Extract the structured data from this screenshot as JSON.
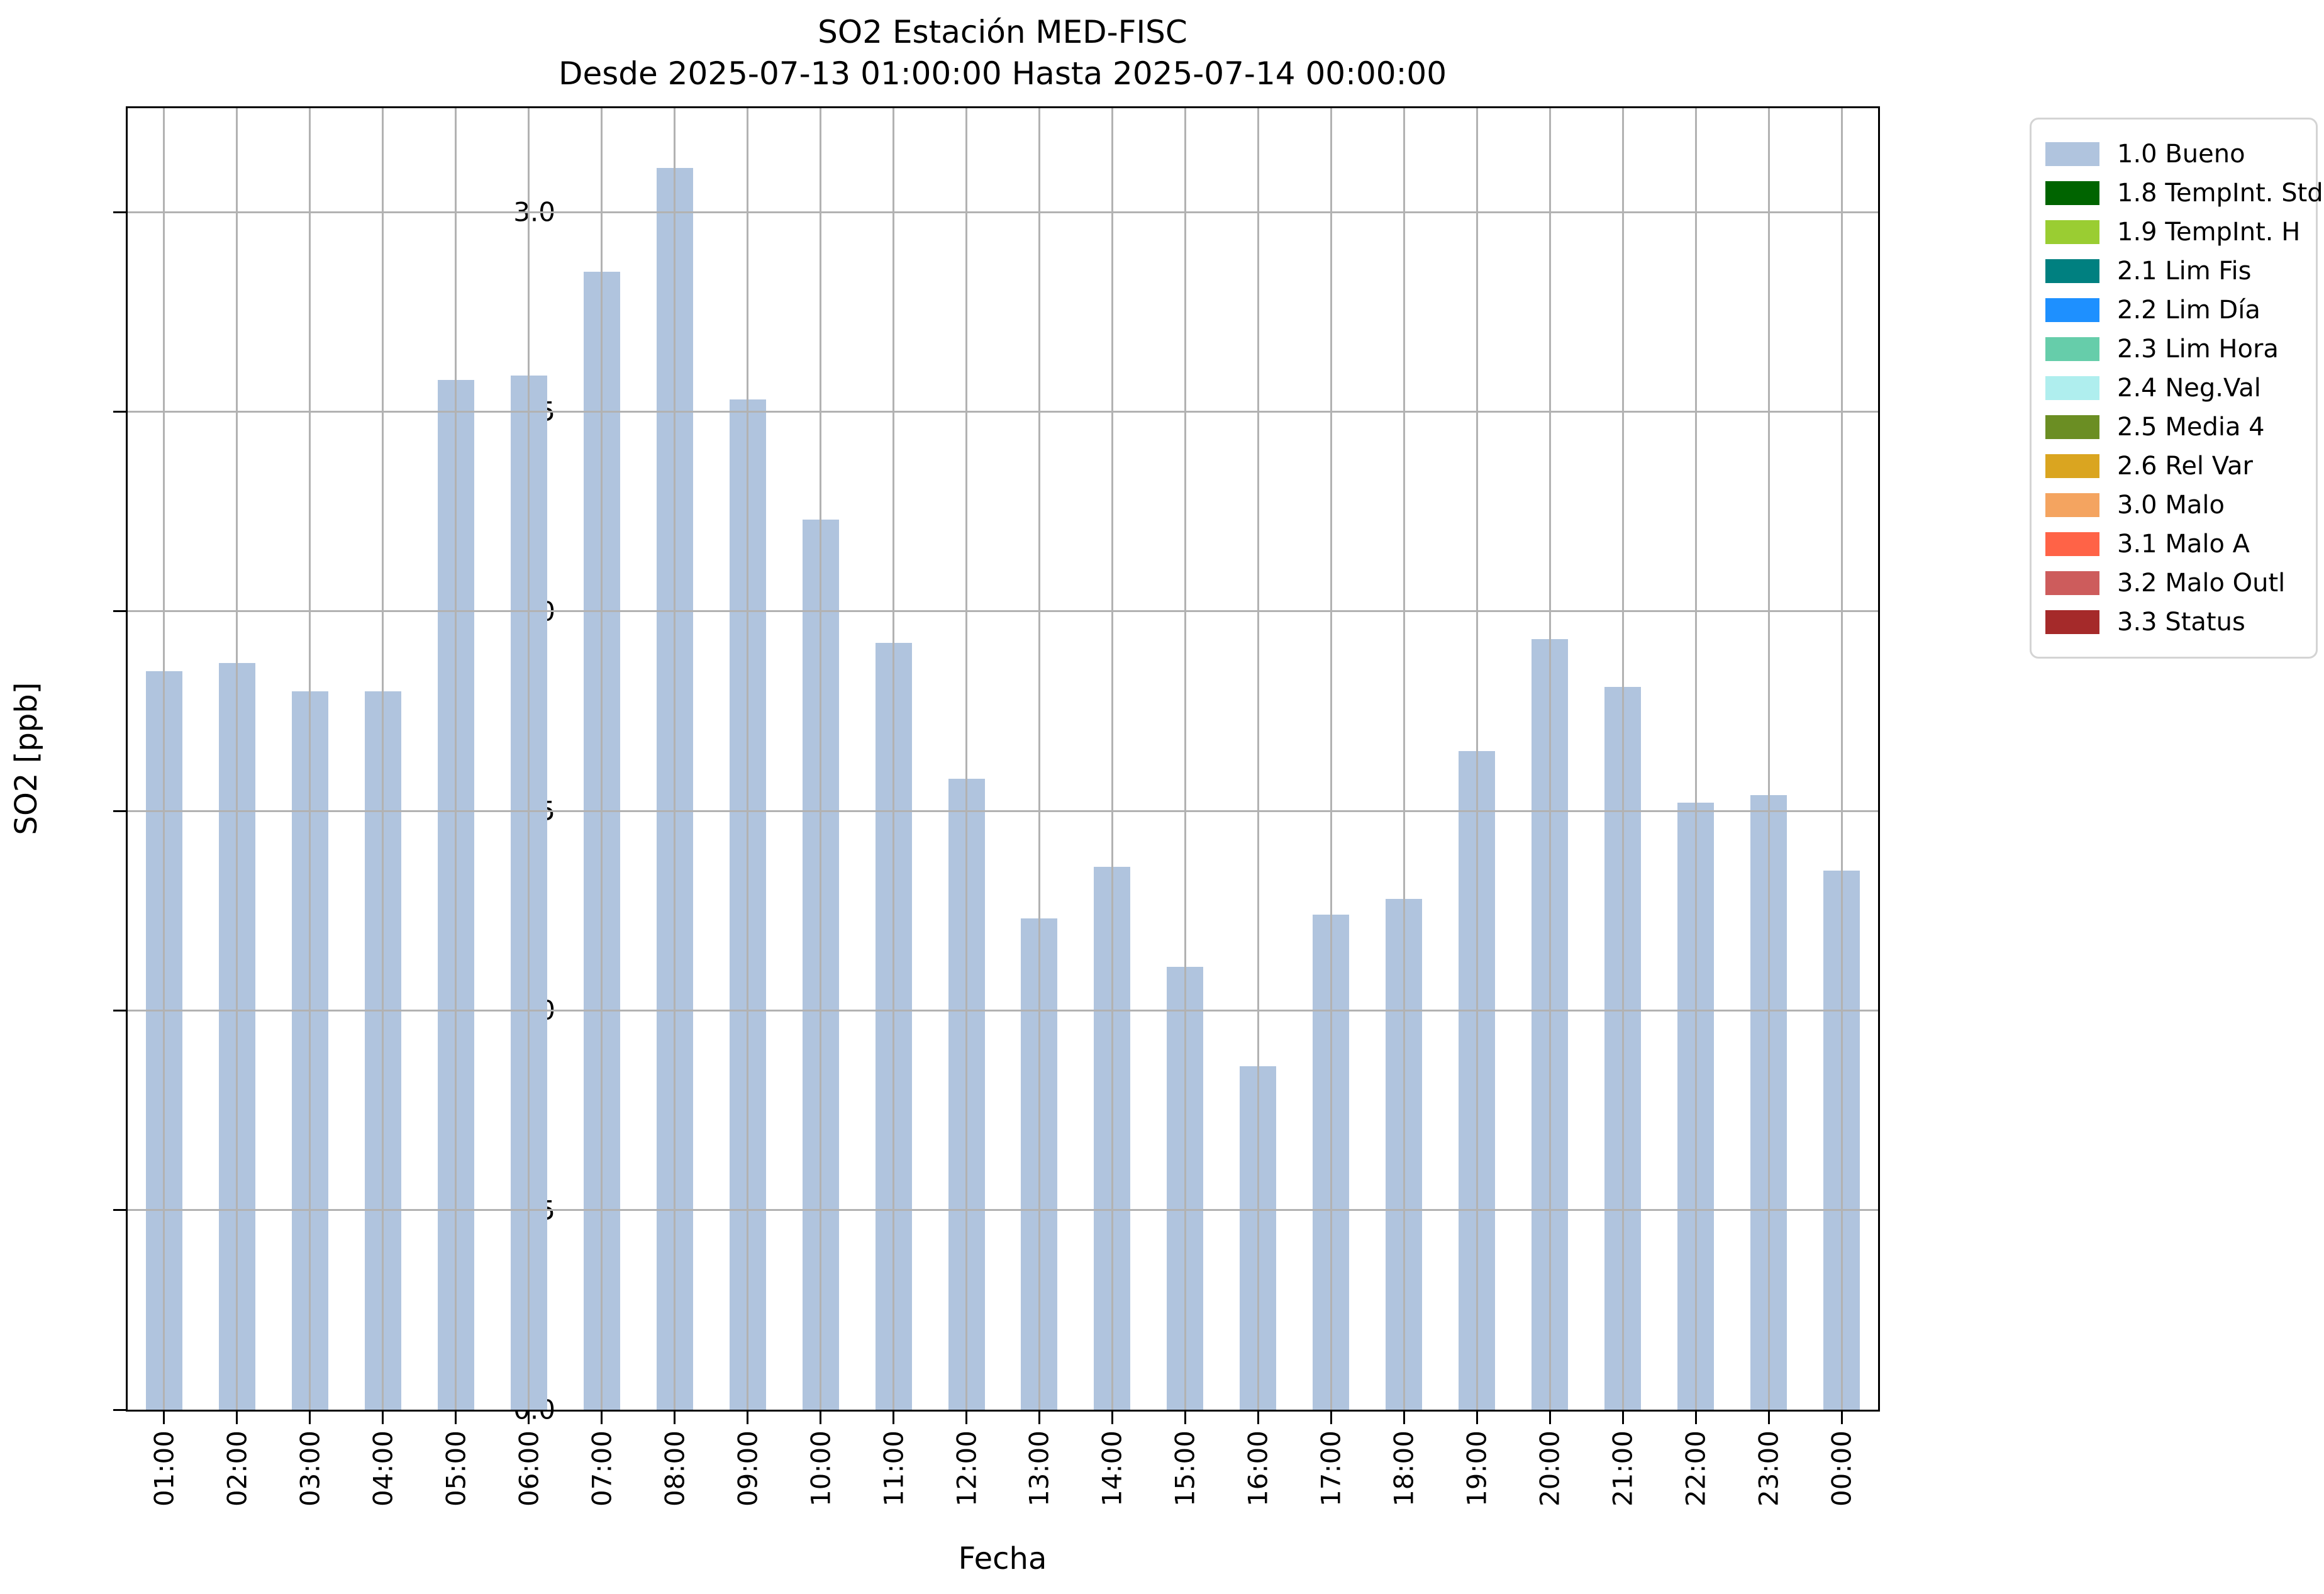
{
  "title": {
    "line1": "SO2 Estación MED-FISC",
    "line2": "Desde 2025-07-13 01:00:00 Hasta 2025-07-14 00:00:00"
  },
  "y_axis": {
    "label": "SO2 [ppb]",
    "ticks": [
      "0.0",
      "0.5",
      "1.0",
      "1.5",
      "2.0",
      "2.5",
      "3.0"
    ],
    "tick_values": [
      0.0,
      0.5,
      1.0,
      1.5,
      2.0,
      2.5,
      3.0
    ]
  },
  "x_axis": {
    "label": "Fecha"
  },
  "chart_data": {
    "type": "bar",
    "title": "SO2 Estación MED-FISC",
    "subtitle": "Desde 2025-07-13 01:00:00 Hasta 2025-07-14 00:00:00",
    "xlabel": "Fecha",
    "ylabel": "SO2 [ppb]",
    "ylim": [
      0,
      3.26
    ],
    "grid": true,
    "bar_color": "#b0c4de",
    "categories": [
      "01:00",
      "02:00",
      "03:00",
      "04:00",
      "05:00",
      "06:00",
      "07:00",
      "08:00",
      "09:00",
      "10:00",
      "11:00",
      "12:00",
      "13:00",
      "14:00",
      "15:00",
      "16:00",
      "17:00",
      "18:00",
      "19:00",
      "20:00",
      "21:00",
      "22:00",
      "23:00",
      "00:00"
    ],
    "values": [
      1.85,
      1.87,
      1.8,
      1.8,
      2.58,
      2.59,
      2.85,
      3.11,
      2.53,
      2.23,
      1.92,
      1.58,
      1.23,
      1.36,
      1.11,
      0.86,
      1.24,
      1.28,
      1.65,
      1.93,
      1.81,
      1.52,
      1.54,
      1.35
    ],
    "series_name": "1.0 Bueno",
    "legend_position": "upper right, outside axes"
  },
  "legend": {
    "items": [
      {
        "label": "1.0 Bueno",
        "color": "#b0c4de"
      },
      {
        "label": "1.8 TempInt. Std",
        "color": "#006400"
      },
      {
        "label": "1.9 TempInt. H",
        "color": "#9acd32"
      },
      {
        "label": "2.1 Lim Fis",
        "color": "#008080"
      },
      {
        "label": "2.2 Lim Día",
        "color": "#1e90ff"
      },
      {
        "label": "2.3 Lim Hora",
        "color": "#66cdaa"
      },
      {
        "label": "2.4 Neg.Val",
        "color": "#afeeee"
      },
      {
        "label": "2.5 Media 4",
        "color": "#6b8e23"
      },
      {
        "label": "2.6 Rel Var",
        "color": "#daa520"
      },
      {
        "label": "3.0 Malo",
        "color": "#f4a460"
      },
      {
        "label": "3.1 Malo A",
        "color": "#ff6347"
      },
      {
        "label": "3.2 Malo Outl",
        "color": "#cd5c5c"
      },
      {
        "label": "3.3 Status",
        "color": "#a52a2a"
      }
    ]
  }
}
